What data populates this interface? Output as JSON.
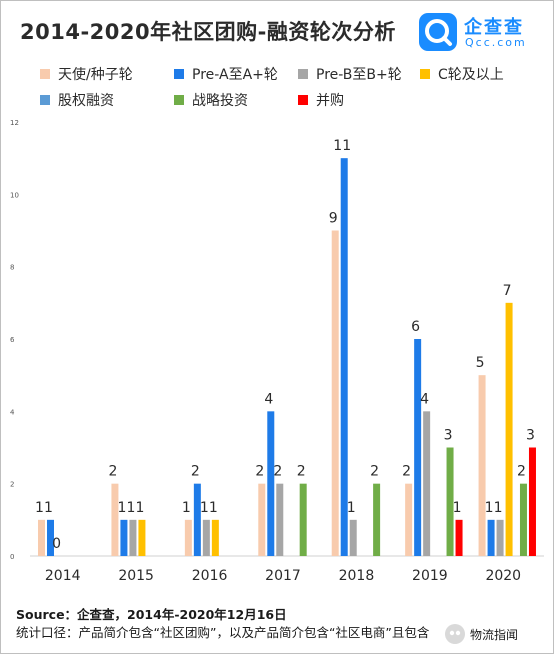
{
  "header": {
    "title": "2014-2020年社区团购-融资轮次分析",
    "logo_name": "企查查",
    "logo_url": "Qcc.com"
  },
  "colors": {
    "angel": "#f8cbad",
    "prea_a": "#1e7be8",
    "preb_b": "#a6a6a6",
    "c_plus": "#ffc000",
    "equity": "#5b9bd5",
    "strategic": "#70ad47",
    "merger": "#ff0000"
  },
  "chart_data": {
    "type": "bar",
    "title": "2014-2020年社区团购-融资轮次分析",
    "categories": [
      "2014",
      "2015",
      "2016",
      "2017",
      "2018",
      "2019",
      "2020"
    ],
    "ylim": [
      0,
      12
    ],
    "yticks": [
      0,
      2,
      4,
      6,
      8,
      10,
      12
    ],
    "grid": false,
    "legend_position": "top",
    "series": [
      {
        "name": "天使/种子轮",
        "color_key": "angel",
        "values": [
          1,
          2,
          1,
          2,
          9,
          2,
          5
        ]
      },
      {
        "name": "Pre-A至A+轮",
        "color_key": "prea_a",
        "values": [
          1,
          1,
          2,
          4,
          11,
          6,
          1
        ]
      },
      {
        "name": "Pre-B至B+轮",
        "color_key": "preb_b",
        "values": [
          null,
          1,
          1,
          2,
          1,
          4,
          1
        ]
      },
      {
        "name": "C轮及以上",
        "color_key": "c_plus",
        "values": [
          null,
          1,
          1,
          null,
          null,
          null,
          7
        ]
      },
      {
        "name": "股权融资",
        "color_key": "equity",
        "values": [
          0,
          null,
          null,
          null,
          null,
          null,
          null
        ]
      },
      {
        "name": "战略投资",
        "color_key": "strategic",
        "values": [
          null,
          null,
          null,
          2,
          2,
          3,
          2
        ]
      },
      {
        "name": "并购",
        "color_key": "merger",
        "values": [
          null,
          null,
          null,
          null,
          null,
          1,
          3
        ]
      }
    ]
  },
  "footer": {
    "source": "Source：企查查，2014年-2020年12月16日",
    "note": "统计口径：产品简介包含“社区团购”，以及产品简介包含“社区电商”且包含",
    "badge": "物流指闻"
  }
}
